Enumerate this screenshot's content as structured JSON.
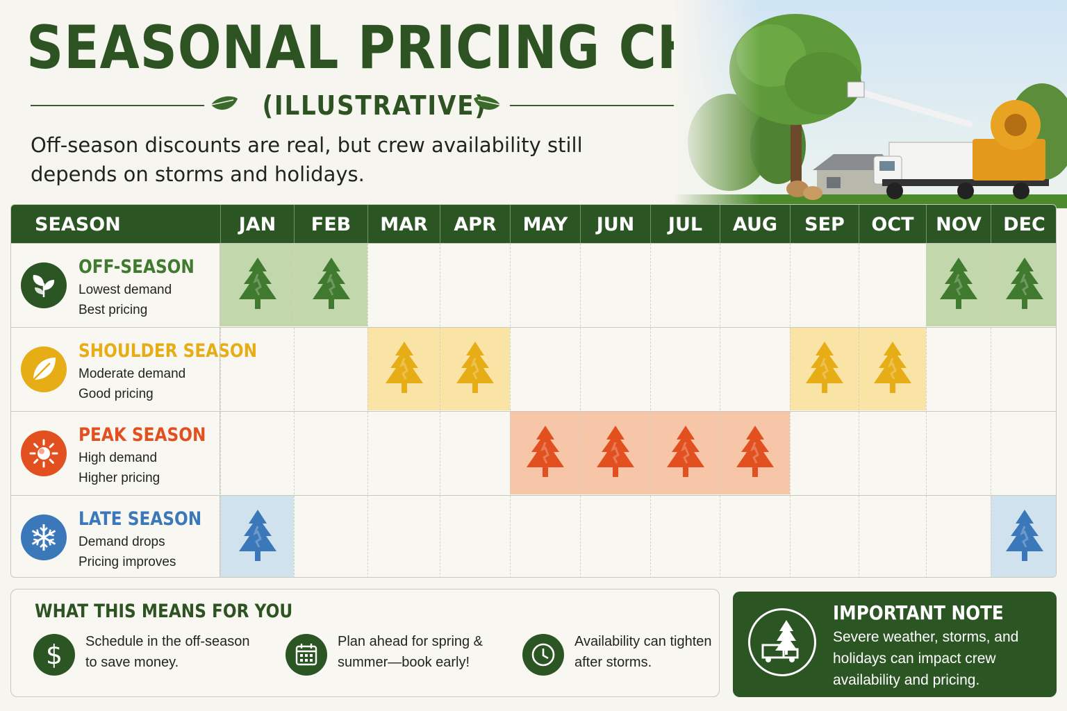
{
  "header": {
    "title": "SEASONAL PRICING CHART",
    "subtitle": "(ILLUSTRATIVE)",
    "lede": "Off-season discounts are real, but crew availability still depends on storms and holidays."
  },
  "chart_data": {
    "type": "table",
    "row_header": "SEASON",
    "months": [
      "JAN",
      "FEB",
      "MAR",
      "APR",
      "MAY",
      "JUN",
      "JUL",
      "AUG",
      "SEP",
      "OCT",
      "NOV",
      "DEC"
    ],
    "seasons": [
      {
        "name": "OFF-SEASON",
        "line1": "Lowest demand",
        "line2": "Best pricing",
        "color": "#3f7a2e",
        "fill": "#c3d7ad",
        "badge": "#2c5524",
        "icon": "leaf-sprout-icon",
        "months": [
          "JAN",
          "FEB",
          "NOV",
          "DEC"
        ]
      },
      {
        "name": "SHOULDER SEASON",
        "line1": "Moderate demand",
        "line2": "Good pricing",
        "color": "#e7ad16",
        "fill": "#f9e4a6",
        "badge": "#e7ad16",
        "icon": "leaf-icon",
        "months": [
          "MAR",
          "APR",
          "SEP",
          "OCT"
        ]
      },
      {
        "name": "PEAK SEASON",
        "line1": "High demand",
        "line2": "Higher pricing",
        "color": "#e2501f",
        "fill": "#f7c5a7",
        "badge": "#e2501f",
        "icon": "sun-icon",
        "months": [
          "MAY",
          "JUN",
          "JUL",
          "AUG"
        ]
      },
      {
        "name": "LATE SEASON",
        "line1": "Demand drops",
        "line2": "Pricing improves",
        "color": "#3b78b9",
        "fill": "#d1e2ef",
        "badge": "#3b78b9",
        "icon": "snowflake-icon",
        "months": [
          "JAN",
          "DEC"
        ]
      }
    ]
  },
  "means": {
    "heading": "WHAT THIS MEANS FOR YOU",
    "tips": [
      {
        "icon": "dollar-icon",
        "line1": "Schedule in the off-season",
        "line2": "to save money."
      },
      {
        "icon": "calendar-icon",
        "line1": "Plan ahead for spring &",
        "line2": "summer—book early!"
      },
      {
        "icon": "clock-icon",
        "line1": "Availability can tighten",
        "line2": "after storms."
      }
    ]
  },
  "note": {
    "heading": "IMPORTANT NOTE",
    "body": "Severe weather, storms, and holidays can impact crew availability and pricing.",
    "icon": "tree-truck-icon"
  },
  "colors": {
    "brand_green": "#2c5524",
    "title_green": "#2e5322",
    "background": "#f6f5ef"
  }
}
